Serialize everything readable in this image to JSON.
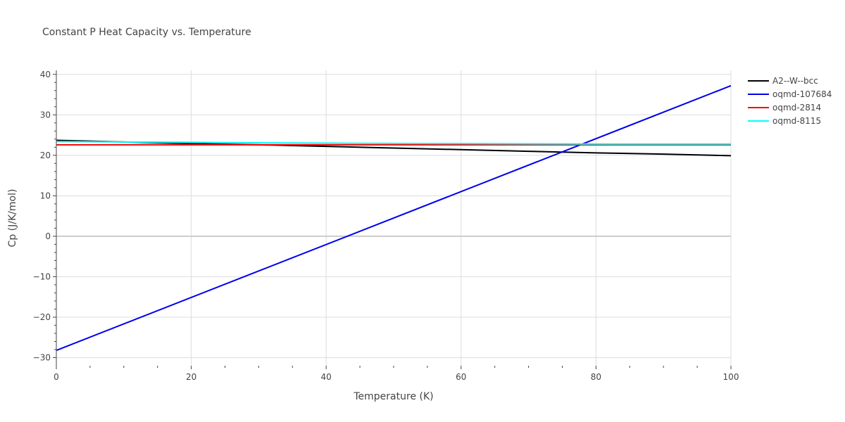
{
  "chart_data": {
    "type": "line",
    "title": "Constant P Heat Capacity vs. Temperature",
    "xlabel": "Temperature (K)",
    "ylabel": "Cp (J/K/mol)",
    "xlim": [
      0,
      100
    ],
    "ylim": [
      -32,
      41
    ],
    "xticks": [
      0,
      20,
      40,
      60,
      80,
      100
    ],
    "yticks": [
      -30,
      -20,
      -10,
      0,
      10,
      20,
      30,
      40
    ],
    "ytick_labels": [
      "−30",
      "−20",
      "−10",
      "0",
      "10",
      "20",
      "30",
      "40"
    ],
    "grid": true,
    "legend_position": "top-right",
    "series": [
      {
        "name": "A2--W--bcc",
        "color": "#000000",
        "x": [
          0,
          10,
          20,
          30,
          40,
          50,
          60,
          70,
          80,
          90,
          100
        ],
        "y": [
          23.7,
          23.3,
          22.9,
          22.6,
          22.2,
          21.8,
          21.4,
          21.0,
          20.6,
          20.3,
          19.9
        ]
      },
      {
        "name": "oqmd-107684",
        "color": "#0000ee",
        "x": [
          0,
          100
        ],
        "y": [
          -28.2,
          37.2
        ]
      },
      {
        "name": "oqmd-2814",
        "color": "#ff0000",
        "x": [
          0,
          20,
          40,
          60,
          80,
          100
        ],
        "y": [
          22.6,
          22.6,
          22.6,
          22.6,
          22.6,
          22.6
        ]
      },
      {
        "name": "oqmd-8115",
        "color": "#00ffff",
        "x": [
          0,
          10,
          20,
          40,
          60,
          80,
          100
        ],
        "y": [
          23.4,
          23.3,
          23.2,
          23.0,
          22.9,
          22.8,
          22.8
        ]
      }
    ]
  }
}
